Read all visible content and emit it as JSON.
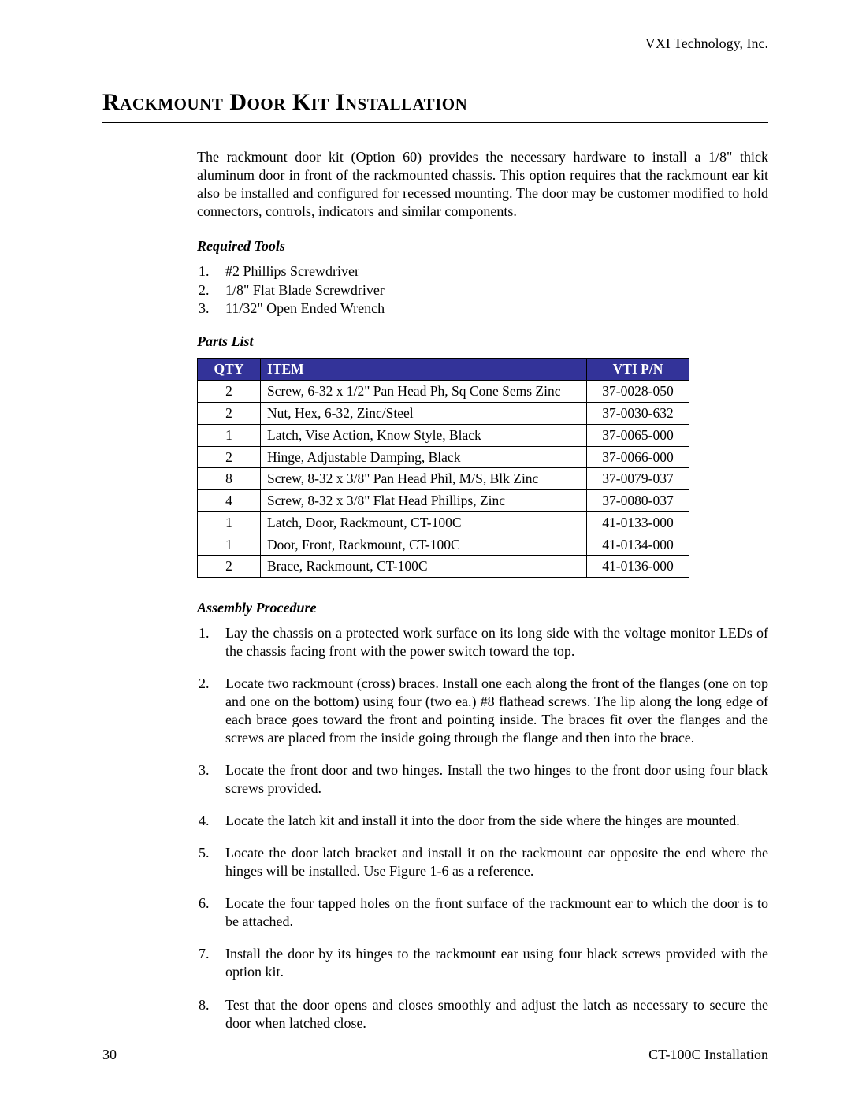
{
  "header": {
    "company": "VXI Technology, Inc."
  },
  "title": "Rackmount Door Kit Installation",
  "intro": "The rackmount door kit (Option 60) provides the necessary hardware to install a 1/8\" thick aluminum door in front of the rackmounted chassis. This option requires that the rackmount ear kit also be installed and configured for recessed mounting. The door may be customer modified to hold connectors, controls, indicators and similar components.",
  "tools": {
    "heading": "Required Tools",
    "items": [
      "#2 Phillips Screwdriver",
      "1/8\" Flat Blade Screwdriver",
      "11/32\" Open Ended Wrench"
    ]
  },
  "parts": {
    "heading": "Parts List",
    "columns": {
      "qty": "QTY",
      "item": "ITEM",
      "pn": "VTI P/N"
    },
    "rows": [
      {
        "qty": "2",
        "item": "Screw, 6-32 x 1/2\" Pan Head Ph, Sq Cone Sems Zinc",
        "pn": "37-0028-050"
      },
      {
        "qty": "2",
        "item": "Nut, Hex, 6-32, Zinc/Steel",
        "pn": "37-0030-632"
      },
      {
        "qty": "1",
        "item": "Latch, Vise Action, Know Style, Black",
        "pn": "37-0065-000"
      },
      {
        "qty": "2",
        "item": "Hinge, Adjustable Damping, Black",
        "pn": "37-0066-000"
      },
      {
        "qty": "8",
        "item": "Screw, 8-32 x 3/8\" Pan Head Phil, M/S, Blk Zinc",
        "pn": "37-0079-037"
      },
      {
        "qty": "4",
        "item": "Screw, 8-32 x 3/8\" Flat Head Phillips, Zinc",
        "pn": "37-0080-037"
      },
      {
        "qty": "1",
        "item": "Latch, Door, Rackmount, CT-100C",
        "pn": "41-0133-000"
      },
      {
        "qty": "1",
        "item": "Door, Front, Rackmount, CT-100C",
        "pn": "41-0134-000"
      },
      {
        "qty": "2",
        "item": "Brace, Rackmount, CT-100C",
        "pn": "41-0136-000"
      }
    ]
  },
  "procedure": {
    "heading": "Assembly Procedure",
    "steps": [
      "Lay the chassis on a protected work surface on its long side with the voltage monitor LEDs of the chassis facing front with the power switch toward the top.",
      "Locate two rackmount (cross) braces. Install one each along the front of the flanges (one on top and one on the bottom) using four (two ea.) #8 flathead screws. The lip along the long edge of each brace goes toward the front and pointing inside. The braces fit over the flanges and the screws are placed from the inside going through the flange and then into the brace.",
      "Locate the front door and two hinges. Install the two hinges to the front door using four black screws provided.",
      "Locate the latch kit and install it into the door from the side where the hinges are mounted.",
      "Locate the door latch bracket and install it on the rackmount ear opposite the end where the hinges will be installed. Use Figure 1-6 as a reference.",
      "Locate the four tapped holes on the front surface of the rackmount ear to which the door is to be attached.",
      "Install the door by its hinges to the rackmount ear using four black screws provided with the option kit.",
      "Test that the door opens and closes smoothly and adjust the latch as necessary to secure the door when latched close."
    ]
  },
  "footer": {
    "page": "30",
    "doc": "CT-100C Installation"
  },
  "style": {
    "table_header_bg": "#333399",
    "table_header_fg": "#ffffff",
    "border_color": "#000000",
    "body_font": "Times New Roman",
    "page_bg": "#ffffff"
  }
}
